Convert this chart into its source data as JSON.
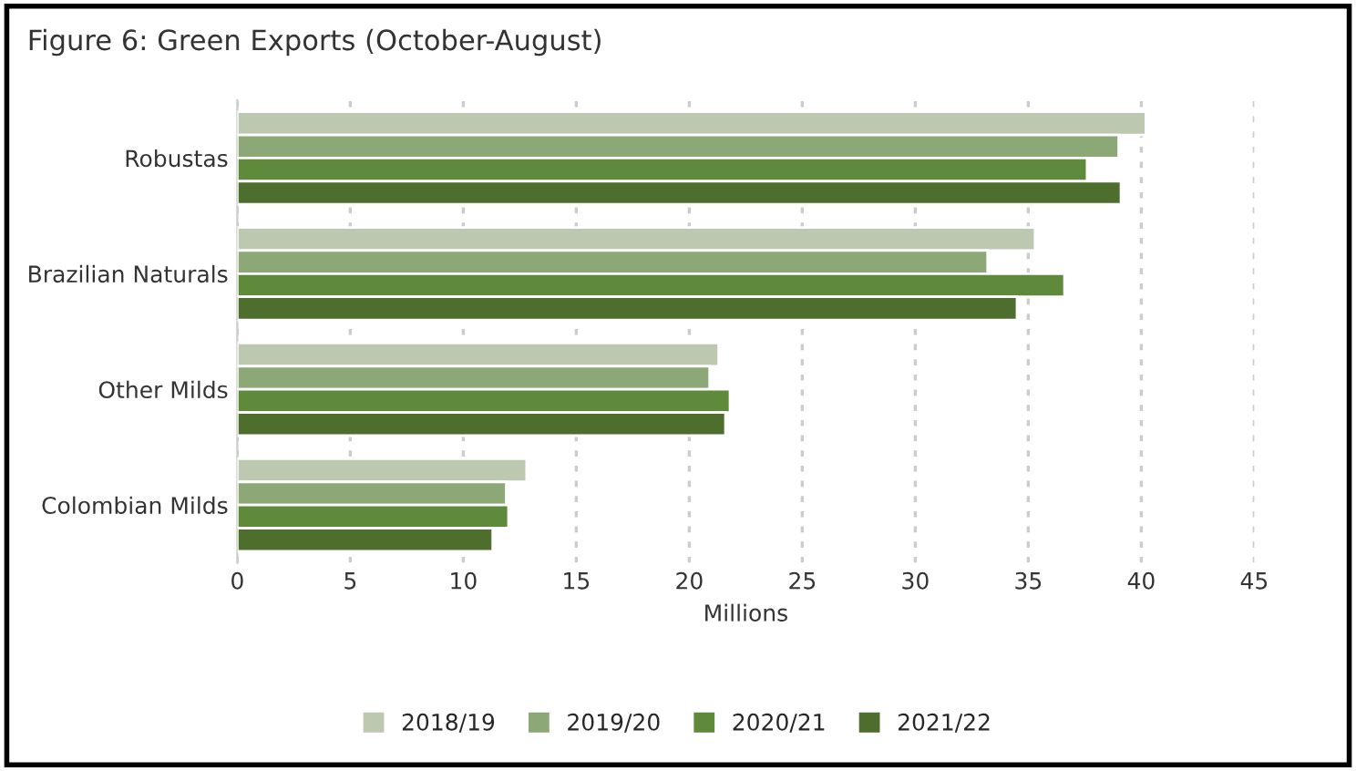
{
  "chart_data": {
    "type": "bar",
    "orientation": "horizontal",
    "title": "Figure 6: Green Exports (October-August)",
    "xlabel": "Millions",
    "categories": [
      "Robustas",
      "Brazilian Naturals",
      "Other Milds",
      "Colombian Milds"
    ],
    "series": [
      {
        "name": "2018/19",
        "color": "#bcc8b0",
        "values": [
          40.2,
          35.3,
          21.3,
          12.8
        ]
      },
      {
        "name": "2019/20",
        "color": "#8ba876",
        "values": [
          39.0,
          33.2,
          20.9,
          11.9
        ]
      },
      {
        "name": "2020/21",
        "color": "#5f8a3c",
        "values": [
          37.6,
          36.6,
          21.8,
          12.0
        ]
      },
      {
        "name": "2021/22",
        "color": "#4e6e2e",
        "values": [
          39.1,
          34.5,
          21.6,
          11.3
        ]
      }
    ],
    "xlim": [
      0,
      45
    ],
    "xticks": [
      0,
      5,
      10,
      15,
      20,
      25,
      30,
      35,
      40,
      45
    ],
    "grid": "x",
    "legend": "bottom"
  }
}
